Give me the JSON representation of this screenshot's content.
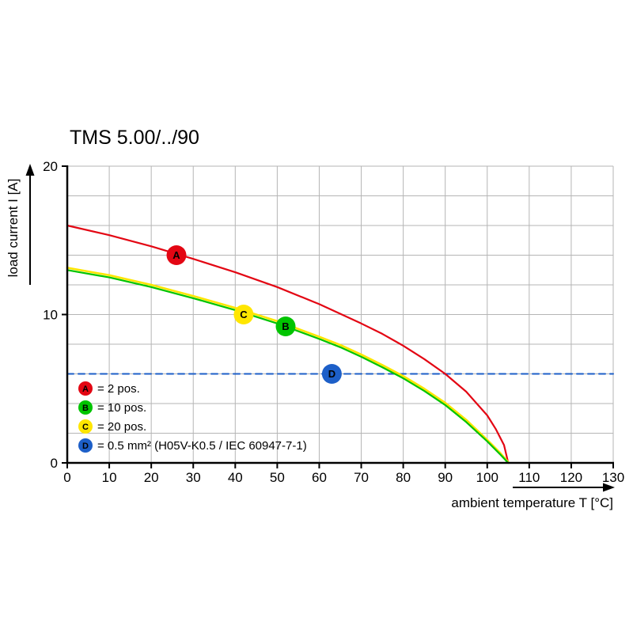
{
  "chart_data": {
    "type": "line",
    "title": "TMS 5.00/../90",
    "xlabel": "ambient temperature T [°C]",
    "ylabel": "load current I [A]",
    "xlim": [
      0,
      130
    ],
    "ylim": [
      0,
      20
    ],
    "xticks": [
      0,
      10,
      20,
      30,
      40,
      50,
      60,
      70,
      80,
      90,
      100,
      110,
      120,
      130
    ],
    "yticks": [
      0,
      10,
      20
    ],
    "grid": {
      "x_step": 10,
      "y_step": 2,
      "color": "#b5b5b5"
    },
    "legend_position": "bottom-left-inside",
    "series": [
      {
        "name": "D",
        "label": "= 0.5 mm² (H05V-K0.5 / IEC 60947-7-1)",
        "color": "#1d5fc8",
        "style": "dashed",
        "width": 2,
        "points": [
          [
            0,
            6
          ],
          [
            130,
            6
          ]
        ]
      },
      {
        "name": "A",
        "label": "= 2 pos.",
        "color": "#e30613",
        "style": "solid",
        "width": 2.2,
        "points": [
          [
            0,
            16
          ],
          [
            10,
            15.35
          ],
          [
            20,
            14.6
          ],
          [
            30,
            13.75
          ],
          [
            40,
            12.85
          ],
          [
            50,
            11.85
          ],
          [
            60,
            10.7
          ],
          [
            70,
            9.4
          ],
          [
            75,
            8.7
          ],
          [
            80,
            7.9
          ],
          [
            85,
            7.0
          ],
          [
            90,
            6.0
          ],
          [
            95,
            4.8
          ],
          [
            100,
            3.2
          ],
          [
            102,
            2.3
          ],
          [
            104,
            1.2
          ],
          [
            105,
            0
          ]
        ]
      },
      {
        "name": "C",
        "label": "= 20 pos.",
        "color": "#ffe600",
        "style": "solid",
        "width": 2.6,
        "points": [
          [
            0,
            13.15
          ],
          [
            10,
            12.65
          ],
          [
            20,
            12.0
          ],
          [
            30,
            11.25
          ],
          [
            40,
            10.45
          ],
          [
            50,
            9.55
          ],
          [
            60,
            8.5
          ],
          [
            65,
            7.95
          ],
          [
            70,
            7.3
          ],
          [
            75,
            6.6
          ],
          [
            80,
            5.85
          ],
          [
            85,
            5.0
          ],
          [
            90,
            4.05
          ],
          [
            95,
            2.9
          ],
          [
            100,
            1.55
          ],
          [
            103,
            0.7
          ],
          [
            105,
            0.05
          ]
        ]
      },
      {
        "name": "B",
        "label": "= 10 pos.",
        "color": "#00c400",
        "style": "solid",
        "width": 2.2,
        "points": [
          [
            0,
            13
          ],
          [
            10,
            12.5
          ],
          [
            20,
            11.85
          ],
          [
            30,
            11.1
          ],
          [
            40,
            10.3
          ],
          [
            50,
            9.4
          ],
          [
            60,
            8.35
          ],
          [
            65,
            7.8
          ],
          [
            70,
            7.15
          ],
          [
            75,
            6.45
          ],
          [
            80,
            5.7
          ],
          [
            85,
            4.85
          ],
          [
            90,
            3.9
          ],
          [
            95,
            2.75
          ],
          [
            100,
            1.45
          ],
          [
            103,
            0.6
          ],
          [
            105,
            0
          ]
        ]
      }
    ],
    "markers": [
      {
        "series": "A",
        "x": 26,
        "y": 14
      },
      {
        "series": "C",
        "x": 42,
        "y": 10
      },
      {
        "series": "B",
        "x": 52,
        "y": 9.2
      },
      {
        "series": "D",
        "x": 63,
        "y": 6
      }
    ],
    "legend_order": [
      "A",
      "B",
      "C",
      "D"
    ]
  }
}
